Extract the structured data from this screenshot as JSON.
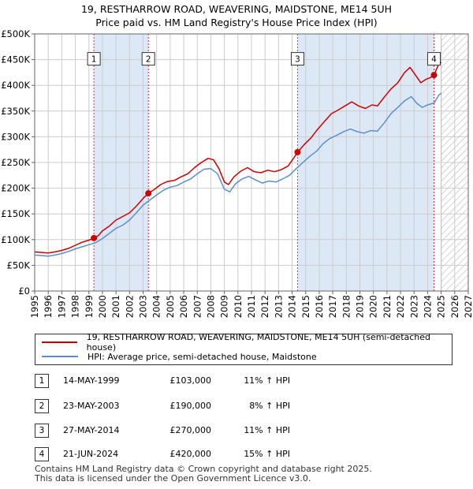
{
  "title_line1": "19, RESTHARROW ROAD, WEAVERING, MAIDSTONE, ME14 5UH",
  "title_line2": "Price paid vs. HM Land Registry's House Price Index (HPI)",
  "colors": {
    "property": "#cc0000",
    "hpi": "#5b8fcb",
    "shade": "#dde8f7",
    "grid": "#cccccc",
    "marker_line": "#e03030"
  },
  "chart_data": {
    "type": "line",
    "title": "Price paid vs. HM Land Registry's House Price Index (HPI)",
    "xlim": [
      1995,
      2027
    ],
    "ylim": [
      0,
      500000
    ],
    "y_ticks": [
      0,
      50000,
      100000,
      150000,
      200000,
      250000,
      300000,
      350000,
      400000,
      450000,
      500000
    ],
    "y_tick_labels": [
      "£0",
      "£50K",
      "£100K",
      "£150K",
      "£200K",
      "£250K",
      "£300K",
      "£350K",
      "£400K",
      "£450K",
      "£500K"
    ],
    "x_ticks": [
      1995,
      1996,
      1997,
      1998,
      1999,
      2000,
      2001,
      2002,
      2003,
      2004,
      2005,
      2006,
      2007,
      2008,
      2009,
      2010,
      2011,
      2012,
      2013,
      2014,
      2015,
      2016,
      2017,
      2018,
      2019,
      2020,
      2021,
      2022,
      2023,
      2024,
      2025,
      2026,
      2027
    ],
    "x_tick_labels": [
      "1995",
      "1996",
      "1997",
      "1998",
      "1999",
      "2000",
      "2001",
      "2002",
      "2003",
      "2004",
      "2005",
      "2006",
      "2007",
      "2008",
      "2009",
      "2010",
      "2011",
      "2012",
      "2013",
      "2014",
      "2015",
      "2016",
      "2017",
      "2018",
      "2019",
      "2020",
      "2021",
      "2022",
      "2023",
      "2024",
      "2025",
      "2026",
      "2027"
    ],
    "forecast_from": 2025.0,
    "series": [
      {
        "name": "19, RESTHARROW ROAD, WEAVERING, MAIDSTONE, ME14 5UH (semi-detached house)",
        "color": "#cc0000",
        "points": [
          [
            1995.0,
            76000
          ],
          [
            1995.5,
            75000
          ],
          [
            1996.0,
            74000
          ],
          [
            1996.5,
            76000
          ],
          [
            1997.0,
            79000
          ],
          [
            1997.5,
            83000
          ],
          [
            1998.0,
            89000
          ],
          [
            1998.5,
            95000
          ],
          [
            1999.0,
            99000
          ],
          [
            1999.37,
            103000
          ],
          [
            1999.7,
            108000
          ],
          [
            2000.0,
            117000
          ],
          [
            2000.5,
            126000
          ],
          [
            2001.0,
            138000
          ],
          [
            2001.5,
            145000
          ],
          [
            2002.0,
            152000
          ],
          [
            2002.5,
            165000
          ],
          [
            2003.0,
            180000
          ],
          [
            2003.39,
            190000
          ],
          [
            2003.8,
            197000
          ],
          [
            2004.3,
            207000
          ],
          [
            2004.8,
            213000
          ],
          [
            2005.3,
            215000
          ],
          [
            2005.8,
            222000
          ],
          [
            2006.3,
            228000
          ],
          [
            2006.8,
            240000
          ],
          [
            2007.3,
            250000
          ],
          [
            2007.8,
            258000
          ],
          [
            2008.2,
            255000
          ],
          [
            2008.6,
            238000
          ],
          [
            2009.0,
            212000
          ],
          [
            2009.3,
            207000
          ],
          [
            2009.7,
            222000
          ],
          [
            2010.2,
            233000
          ],
          [
            2010.7,
            240000
          ],
          [
            2011.2,
            232000
          ],
          [
            2011.7,
            230000
          ],
          [
            2012.2,
            235000
          ],
          [
            2012.7,
            232000
          ],
          [
            2013.2,
            236000
          ],
          [
            2013.7,
            243000
          ],
          [
            2014.1,
            258000
          ],
          [
            2014.4,
            270000
          ],
          [
            2014.9,
            285000
          ],
          [
            2015.4,
            298000
          ],
          [
            2015.9,
            315000
          ],
          [
            2016.4,
            330000
          ],
          [
            2016.9,
            345000
          ],
          [
            2017.4,
            352000
          ],
          [
            2017.9,
            360000
          ],
          [
            2018.4,
            368000
          ],
          [
            2018.9,
            360000
          ],
          [
            2019.4,
            355000
          ],
          [
            2019.9,
            362000
          ],
          [
            2020.3,
            360000
          ],
          [
            2020.8,
            377000
          ],
          [
            2021.3,
            393000
          ],
          [
            2021.8,
            405000
          ],
          [
            2022.3,
            425000
          ],
          [
            2022.7,
            435000
          ],
          [
            2023.1,
            420000
          ],
          [
            2023.5,
            405000
          ],
          [
            2023.9,
            412000
          ],
          [
            2024.2,
            415000
          ],
          [
            2024.47,
            420000
          ],
          [
            2024.8,
            440000
          ],
          [
            2025.0,
            445000
          ]
        ]
      },
      {
        "name": "HPI: Average price, semi-detached house, Maidstone",
        "color": "#5b8fcb",
        "points": [
          [
            1995.0,
            70000
          ],
          [
            1995.5,
            69000
          ],
          [
            1996.0,
            68000
          ],
          [
            1996.5,
            70000
          ],
          [
            1997.0,
            73000
          ],
          [
            1997.5,
            77000
          ],
          [
            1998.0,
            82000
          ],
          [
            1998.5,
            86000
          ],
          [
            1999.0,
            90000
          ],
          [
            1999.5,
            94000
          ],
          [
            2000.0,
            102000
          ],
          [
            2000.5,
            112000
          ],
          [
            2001.0,
            122000
          ],
          [
            2001.5,
            128000
          ],
          [
            2002.0,
            138000
          ],
          [
            2002.5,
            152000
          ],
          [
            2003.0,
            167000
          ],
          [
            2003.5,
            177000
          ],
          [
            2004.0,
            187000
          ],
          [
            2004.5,
            196000
          ],
          [
            2005.0,
            202000
          ],
          [
            2005.5,
            205000
          ],
          [
            2006.0,
            212000
          ],
          [
            2006.5,
            218000
          ],
          [
            2007.0,
            228000
          ],
          [
            2007.5,
            237000
          ],
          [
            2008.0,
            238000
          ],
          [
            2008.5,
            228000
          ],
          [
            2009.0,
            198000
          ],
          [
            2009.4,
            193000
          ],
          [
            2009.8,
            208000
          ],
          [
            2010.3,
            218000
          ],
          [
            2010.8,
            223000
          ],
          [
            2011.3,
            216000
          ],
          [
            2011.8,
            210000
          ],
          [
            2012.3,
            214000
          ],
          [
            2012.8,
            212000
          ],
          [
            2013.3,
            218000
          ],
          [
            2013.8,
            225000
          ],
          [
            2014.3,
            238000
          ],
          [
            2014.8,
            250000
          ],
          [
            2015.3,
            262000
          ],
          [
            2015.8,
            272000
          ],
          [
            2016.3,
            287000
          ],
          [
            2016.8,
            297000
          ],
          [
            2017.3,
            303000
          ],
          [
            2017.8,
            310000
          ],
          [
            2018.3,
            315000
          ],
          [
            2018.8,
            310000
          ],
          [
            2019.3,
            307000
          ],
          [
            2019.8,
            312000
          ],
          [
            2020.3,
            311000
          ],
          [
            2020.8,
            327000
          ],
          [
            2021.3,
            345000
          ],
          [
            2021.8,
            357000
          ],
          [
            2022.3,
            370000
          ],
          [
            2022.8,
            378000
          ],
          [
            2023.2,
            365000
          ],
          [
            2023.6,
            357000
          ],
          [
            2024.0,
            362000
          ],
          [
            2024.5,
            366000
          ],
          [
            2024.8,
            380000
          ],
          [
            2025.0,
            385000
          ]
        ]
      }
    ],
    "sales": [
      {
        "label": "1",
        "x": 1999.37,
        "price": 103000
      },
      {
        "label": "2",
        "x": 2003.39,
        "price": 190000
      },
      {
        "label": "3",
        "x": 2014.4,
        "price": 270000
      },
      {
        "label": "4",
        "x": 2024.47,
        "price": 420000
      }
    ],
    "box_label_value": 450000
  },
  "legend": {
    "property_label": "19, RESTHARROW ROAD, WEAVERING, MAIDSTONE, ME14 5UH (semi-detached house)",
    "hpi_label": "HPI: Average price, semi-detached house, Maidstone"
  },
  "transactions": [
    {
      "num": "1",
      "date": "14-MAY-1999",
      "price": "£103,000",
      "hpi": "11% ↑ HPI"
    },
    {
      "num": "2",
      "date": "23-MAY-2003",
      "price": "£190,000",
      "hpi": "8% ↑ HPI"
    },
    {
      "num": "3",
      "date": "27-MAY-2014",
      "price": "£270,000",
      "hpi": "11% ↑ HPI"
    },
    {
      "num": "4",
      "date": "21-JUN-2024",
      "price": "£420,000",
      "hpi": "15% ↑ HPI"
    }
  ],
  "footer": {
    "line1": "Contains HM Land Registry data © Crown copyright and database right 2025.",
    "line2": "This data is licensed under the Open Government Licence v3.0."
  }
}
